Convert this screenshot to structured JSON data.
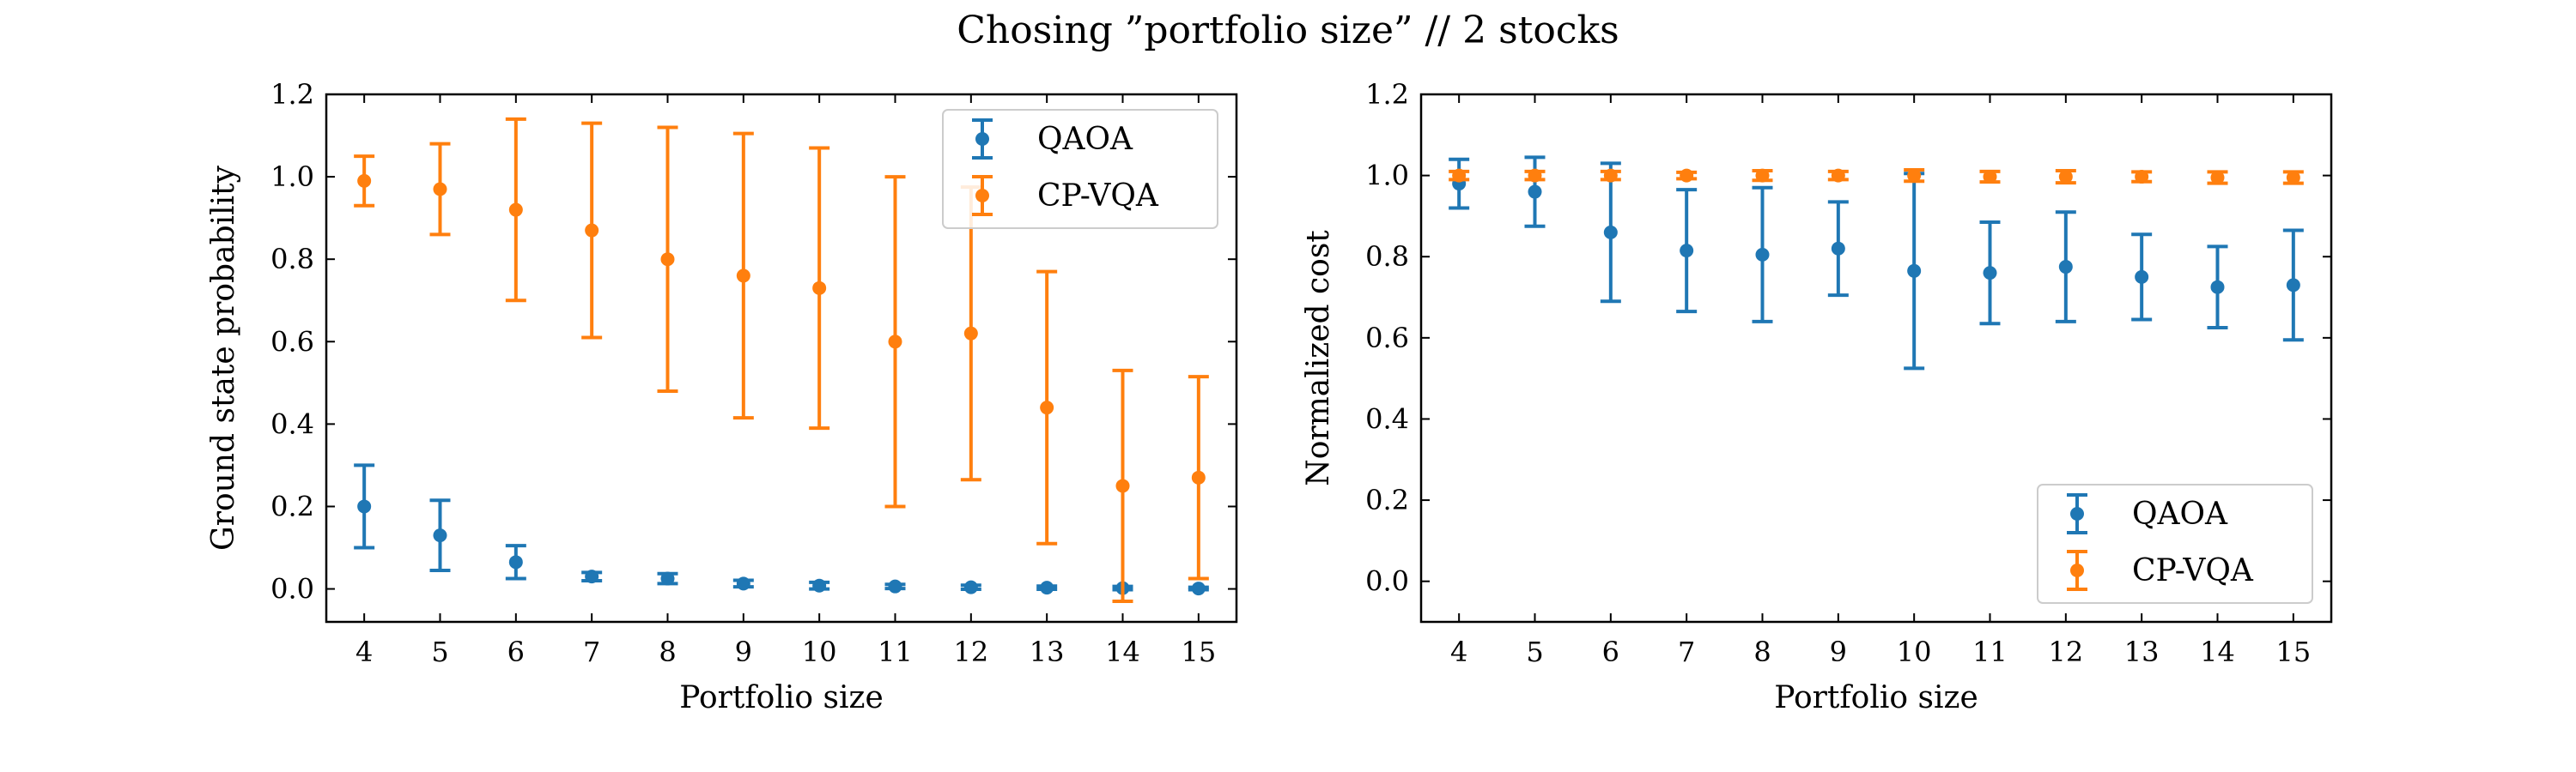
{
  "figure": {
    "suptitle": "Chosing ”portfolio size” // 2 stocks"
  },
  "chart_data": [
    {
      "type": "scatter",
      "subtype": "errorbar",
      "xlabel": "Portfolio size",
      "ylabel": "Ground state probability",
      "x": [
        4,
        5,
        6,
        7,
        8,
        9,
        10,
        11,
        12,
        13,
        14,
        15
      ],
      "xlim": [
        3.5,
        15.5
      ],
      "ylim": [
        -0.08,
        1.2
      ],
      "yticks": [
        0.0,
        0.2,
        0.4,
        0.6,
        0.8,
        1.0,
        1.2
      ],
      "ytick_labels": [
        "0.0",
        "0.2",
        "0.4",
        "0.6",
        "0.8",
        "1.0",
        "1.2"
      ],
      "xtick_labels": [
        "4",
        "5",
        "6",
        "7",
        "8",
        "9",
        "10",
        "11",
        "12",
        "13",
        "14",
        "15"
      ],
      "legend_position": "top-right",
      "series": [
        {
          "name": "QAOA",
          "color": "#1f77b4",
          "y": [
            0.2,
            0.13,
            0.065,
            0.03,
            0.025,
            0.013,
            0.008,
            0.006,
            0.004,
            0.003,
            0.002,
            0.001
          ],
          "err": [
            0.1,
            0.085,
            0.04,
            0.01,
            0.012,
            0.008,
            0.008,
            0.005,
            0.005,
            0.004,
            0.004,
            0.003
          ]
        },
        {
          "name": "CP-VQA",
          "color": "#ff7f0e",
          "y": [
            0.99,
            0.97,
            0.92,
            0.87,
            0.8,
            0.76,
            0.73,
            0.6,
            0.62,
            0.44,
            0.25,
            0.27
          ],
          "err": [
            0.06,
            0.11,
            0.22,
            0.26,
            0.32,
            0.345,
            0.34,
            0.4,
            0.355,
            0.33,
            0.28,
            0.245
          ]
        }
      ]
    },
    {
      "type": "scatter",
      "subtype": "errorbar",
      "xlabel": "Portfolio size",
      "ylabel": "Normalized cost",
      "x": [
        4,
        5,
        6,
        7,
        8,
        9,
        10,
        11,
        12,
        13,
        14,
        15
      ],
      "xlim": [
        3.5,
        15.5
      ],
      "ylim": [
        -0.1,
        1.2
      ],
      "yticks": [
        0.0,
        0.2,
        0.4,
        0.6,
        0.8,
        1.0,
        1.2
      ],
      "ytick_labels": [
        "0.0",
        "0.2",
        "0.4",
        "0.6",
        "0.8",
        "1.0",
        "1.2"
      ],
      "xtick_labels": [
        "4",
        "5",
        "6",
        "7",
        "8",
        "9",
        "10",
        "11",
        "12",
        "13",
        "14",
        "15"
      ],
      "legend_position": "bottom-right",
      "series": [
        {
          "name": "QAOA",
          "color": "#1f77b4",
          "y": [
            0.98,
            0.96,
            0.86,
            0.815,
            0.805,
            0.82,
            0.765,
            0.76,
            0.775,
            0.75,
            0.725,
            0.73
          ],
          "err": [
            0.06,
            0.085,
            0.17,
            0.15,
            0.165,
            0.115,
            0.24,
            0.125,
            0.135,
            0.105,
            0.1,
            0.135
          ]
        },
        {
          "name": "CP-VQA",
          "color": "#ff7f0e",
          "y": [
            1.0,
            1.0,
            1.0,
            1.0,
            1.0,
            1.0,
            1.0,
            0.997,
            0.997,
            0.997,
            0.995,
            0.995
          ],
          "err": [
            0.01,
            0.01,
            0.01,
            0.008,
            0.012,
            0.01,
            0.014,
            0.013,
            0.015,
            0.012,
            0.014,
            0.014
          ]
        }
      ]
    }
  ]
}
